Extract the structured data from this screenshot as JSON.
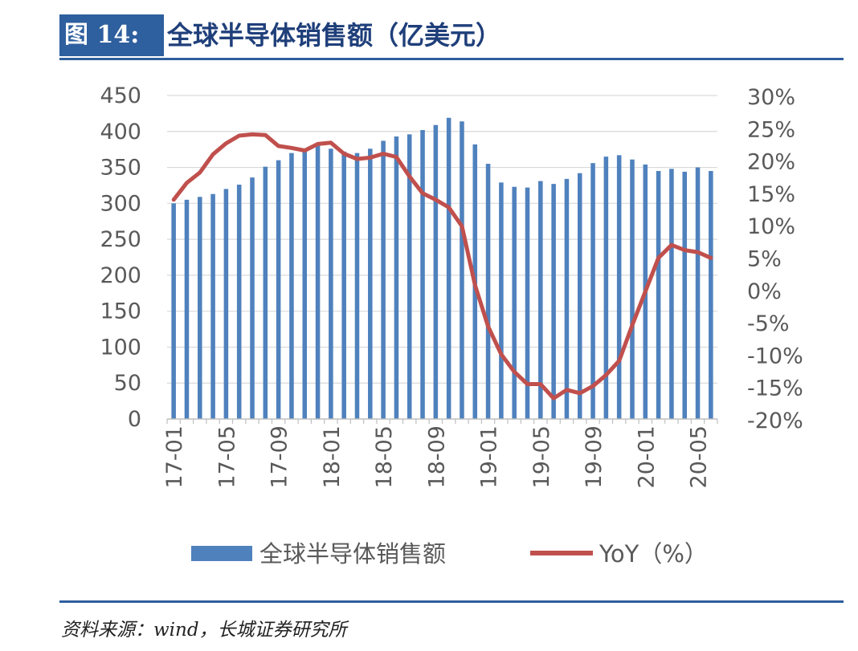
{
  "header": {
    "label": "图 14:",
    "title": "全球半导体销售额（亿美元）"
  },
  "source": "资料来源：wind，长城证券研究所",
  "colors": {
    "bar": "#4f81bd",
    "line": "#c0504d",
    "grid": "#d9d9d9",
    "axis_text": "#595959",
    "brand": "#2e5f9e"
  },
  "chart_data": {
    "type": "bar",
    "title": "",
    "xlabel": "",
    "ylabel": "",
    "ylim": [
      0,
      450
    ],
    "y2lim": [
      -20,
      30
    ],
    "yticks": [
      "0",
      "50",
      "100",
      "150",
      "200",
      "250",
      "300",
      "350",
      "400",
      "450"
    ],
    "y2ticks": [
      "-20%",
      "-15%",
      "-10%",
      "-5%",
      "0%",
      "5%",
      "10%",
      "15%",
      "20%",
      "25%",
      "30%"
    ],
    "grid": true,
    "legend_position": "bottom",
    "x": [
      "17-01",
      "17-02",
      "17-03",
      "17-04",
      "17-05",
      "17-06",
      "17-07",
      "17-08",
      "17-09",
      "17-10",
      "17-11",
      "17-12",
      "18-01",
      "18-02",
      "18-03",
      "18-04",
      "18-05",
      "18-06",
      "18-07",
      "18-08",
      "18-09",
      "18-10",
      "18-11",
      "18-12",
      "19-01",
      "19-02",
      "19-03",
      "19-04",
      "19-05",
      "19-06",
      "19-07",
      "19-08",
      "19-09",
      "19-10",
      "19-11",
      "19-12",
      "20-01",
      "20-02",
      "20-03",
      "20-04",
      "20-05",
      "20-06"
    ],
    "x_tick_labels": [
      "17-01",
      "17-05",
      "17-09",
      "18-01",
      "18-05",
      "18-09",
      "19-01",
      "19-05",
      "19-09",
      "20-01",
      "20-05"
    ],
    "series": [
      {
        "name": "全球半导体销售额",
        "type": "bar",
        "axis": "left",
        "values": [
          300,
          305,
          309,
          313,
          320,
          326,
          336,
          351,
          360,
          370,
          376,
          382,
          376,
          372,
          370,
          376,
          387,
          393,
          396,
          402,
          409,
          419,
          414,
          382,
          355,
          329,
          323,
          322,
          331,
          327,
          334,
          342,
          356,
          365,
          367,
          361,
          354,
          345,
          348,
          344,
          350,
          345
        ]
      },
      {
        "name": "YoY（%）",
        "type": "line",
        "axis": "right",
        "values": [
          13.9,
          16.5,
          18.1,
          20.9,
          22.6,
          23.8,
          24.0,
          23.9,
          22.2,
          21.9,
          21.5,
          22.5,
          22.7,
          21.0,
          20.2,
          20.4,
          21.0,
          20.5,
          17.5,
          14.9,
          13.9,
          12.7,
          9.8,
          0.7,
          -5.7,
          -10.0,
          -12.7,
          -14.6,
          -14.6,
          -16.8,
          -15.5,
          -16.0,
          -14.9,
          -13.2,
          -11.0,
          -5.5,
          -0.3,
          4.9,
          6.9,
          6.1,
          5.8,
          4.9
        ]
      }
    ]
  }
}
